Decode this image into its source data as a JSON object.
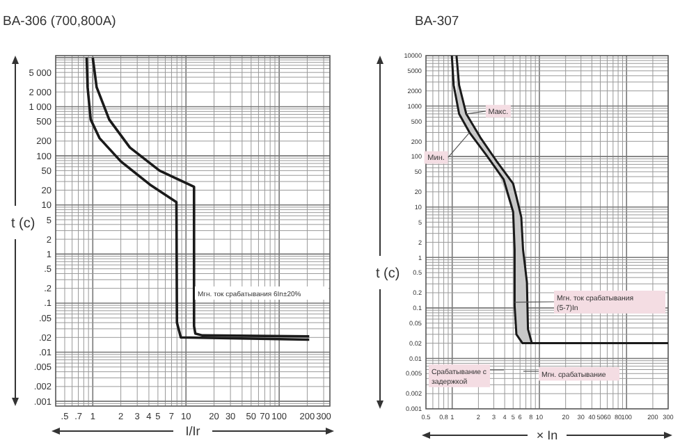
{
  "chart_data": [
    {
      "type": "line",
      "title": "BA-306 (700,800A)",
      "xlabel": "I/Ir",
      "ylabel": "t (c)",
      "log": "xy",
      "grid": true,
      "marker": "none",
      "line_style": "solid",
      "xlim": [
        0.4,
        350
      ],
      "ylim": [
        0.0008,
        11000
      ],
      "xticks": [
        {
          "value": 0.5,
          "label": ".5"
        },
        {
          "value": 0.7,
          "label": ".7"
        },
        1,
        2,
        3,
        4,
        5,
        7,
        10,
        20,
        30,
        50,
        70,
        100,
        200,
        300
      ],
      "yticks": [
        {
          "value": 0.001,
          "label": ".001"
        },
        {
          "value": 0.002,
          "label": ".002"
        },
        {
          "value": 0.005,
          "label": ".005"
        },
        {
          "value": 0.01,
          "label": ".01"
        },
        {
          "value": 0.02,
          "label": ".02"
        },
        {
          "value": 0.05,
          "label": ".05"
        },
        {
          "value": 0.1,
          "label": ".1"
        },
        {
          "value": 0.2,
          "label": ".2"
        },
        {
          "value": 0.5,
          "label": ".5"
        },
        1,
        2,
        5,
        10,
        20,
        50,
        100,
        200,
        500,
        {
          "value": 1000,
          "label": "1 000"
        },
        {
          "value": 2000,
          "label": "2 000"
        },
        {
          "value": 5000,
          "label": "5 000"
        }
      ],
      "series": [
        {
          "color": "#1a1a1a",
          "x": [
            0.86,
            0.88,
            0.95,
            1.18,
            2.0,
            4.1,
            7.9,
            8.0,
            8.8,
            210
          ],
          "values": [
            10000,
            2500,
            550,
            230,
            77,
            26,
            11.4,
            0.04,
            0.02,
            0.018
          ]
        },
        {
          "color": "#1a1a1a",
          "x": [
            1.0,
            1.1,
            1.5,
            2.5,
            5.2,
            12.2,
            12.2,
            12.6,
            15,
            210
          ],
          "values": [
            10000,
            2500,
            550,
            148,
            50,
            23.4,
            0.034,
            0.024,
            0.022,
            0.021
          ]
        }
      ],
      "annotations": [
        "Мгн. ток срабатывания 6In±20%"
      ]
    },
    {
      "type": "line",
      "title": "BA-307",
      "xlabel": "× In",
      "ylabel": "t (c)",
      "log": "xy",
      "grid": true,
      "marker": "none",
      "line_style": "solid",
      "xlim": [
        0.5,
        300
      ],
      "ylim": [
        0.001,
        10000
      ],
      "xticks": [
        0.5,
        0.8,
        1,
        2,
        3,
        4,
        5,
        6,
        8,
        10,
        20,
        30,
        40,
        50,
        60,
        80,
        100,
        200,
        300
      ],
      "yticks": [
        0.001,
        0.002,
        0.005,
        0.01,
        0.02,
        0.05,
        0.1,
        0.2,
        0.5,
        1,
        2,
        5,
        10,
        20,
        50,
        100,
        200,
        500,
        1000,
        2000,
        5000,
        10000
      ],
      "series": [
        {
          "name": "Мин.",
          "color": "#1a1a1a",
          "x": [
            0.99,
            1.04,
            1.2,
            1.58,
            2.5,
            3.9,
            5.0,
            5.2,
            5.2,
            5.45,
            6.4,
            8.2
          ],
          "values": [
            10000,
            2600,
            700,
            300,
            103,
            35,
            8,
            1.43,
            0.11,
            0.03,
            0.02,
            0.02
          ]
        },
        {
          "name": "Макс.",
          "color": "#1a1a1a",
          "x": [
            1.12,
            1.2,
            1.45,
            2.1,
            3.2,
            5.0,
            5.2,
            5.45,
            6.2,
            6.5,
            7.2,
            7.4,
            8.2,
            300
          ],
          "values": [
            10000,
            2600,
            700,
            240,
            83,
            29,
            22,
            16,
            6.3,
            1.43,
            0.32,
            0.038,
            0.02,
            0.02
          ],
          "lower": [
            1350,
            700,
            400,
            160,
            60,
            8,
            0.11,
            0.03,
            0.022,
            0.02,
            0.02,
            0.02,
            0.02,
            0.02
          ],
          "upper": [
            10000,
            2600,
            700,
            240,
            83,
            29,
            22,
            16,
            6.3,
            1.43,
            0.32,
            0.038,
            0.02,
            0.02
          ]
        }
      ],
      "annotations": [
        {
          "text": "Мгн. ток срабатывания (5-7)In",
          "x": 5.2,
          "y": 0.13
        },
        "Срабатывание с задержкой",
        "Мгн. срабатывание"
      ]
    }
  ]
}
